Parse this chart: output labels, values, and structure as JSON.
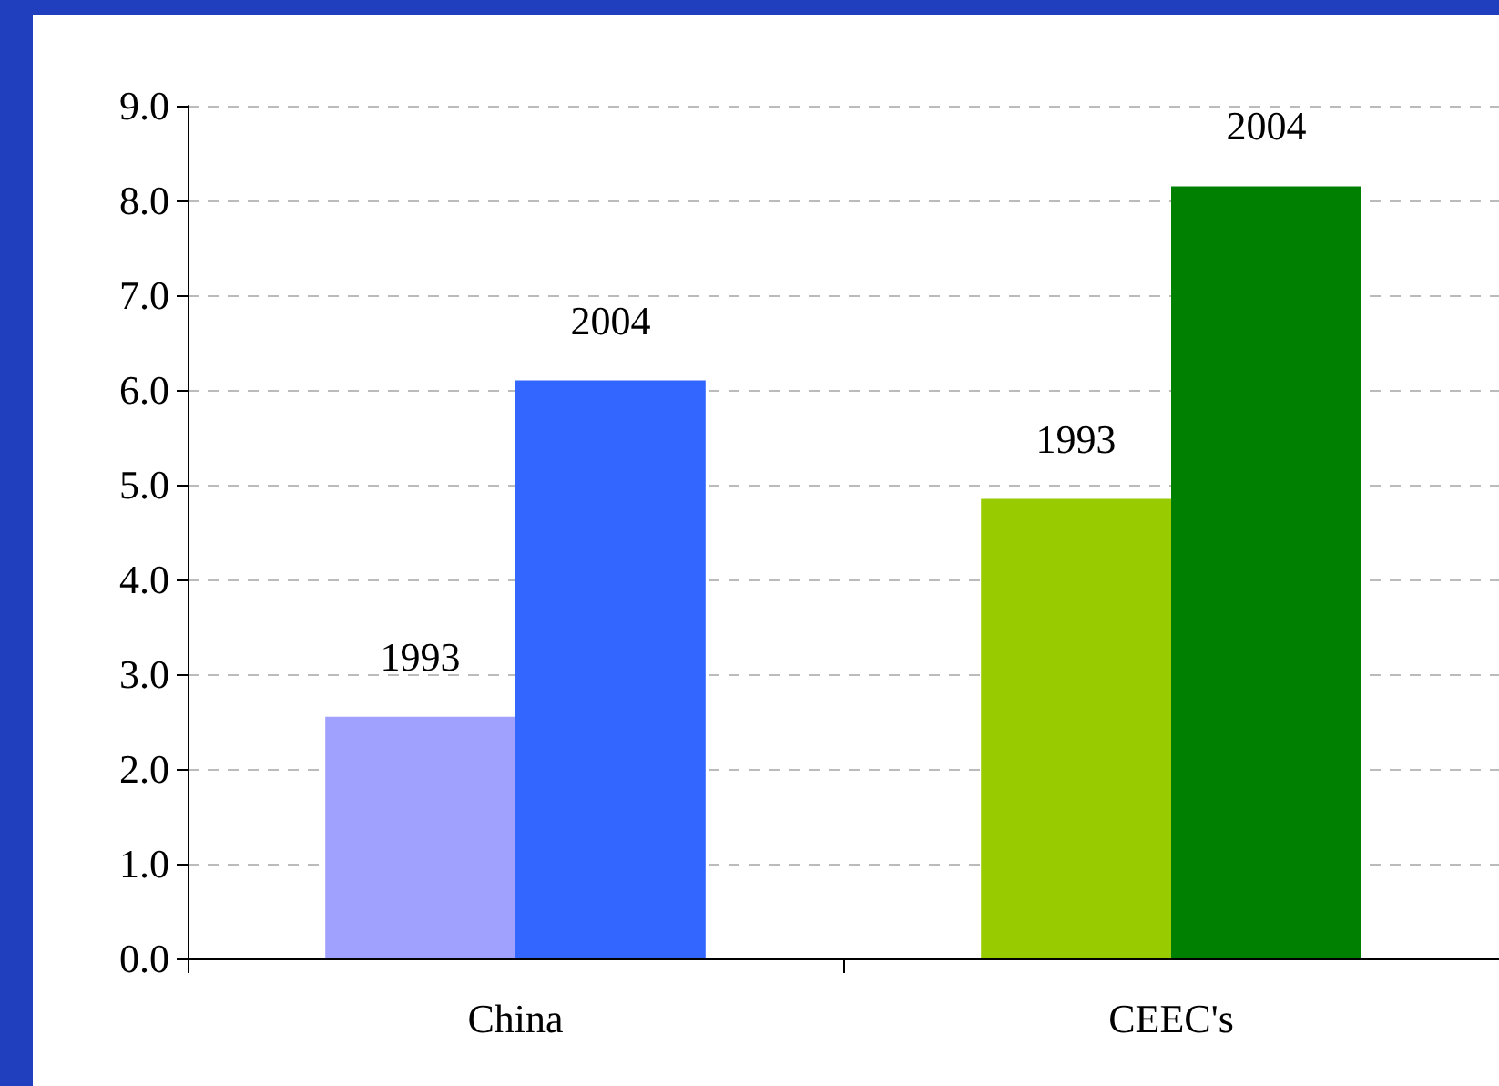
{
  "chart_data": {
    "type": "bar",
    "categories": [
      "China",
      "CEEC's"
    ],
    "series": [
      {
        "name": "1993",
        "colors": [
          "#a0a0ff",
          "#99cc00"
        ],
        "values": [
          2.55,
          4.85
        ]
      },
      {
        "name": "2004",
        "colors": [
          "#3366ff",
          "#008000"
        ],
        "values": [
          6.1,
          8.15
        ]
      }
    ],
    "ylim": [
      0,
      9
    ],
    "yticks": [
      {
        "value": 0,
        "label": "0.0"
      },
      {
        "value": 1,
        "label": "1.0"
      },
      {
        "value": 2,
        "label": "2.0"
      },
      {
        "value": 3,
        "label": "3.0"
      },
      {
        "value": 4,
        "label": "4.0"
      },
      {
        "value": 5,
        "label": "5.0"
      },
      {
        "value": 6,
        "label": "6.0"
      },
      {
        "value": 7,
        "label": "7.0"
      },
      {
        "value": 8,
        "label": "8.0"
      },
      {
        "value": 9,
        "label": "9.0"
      }
    ],
    "grid": "y",
    "legend": false
  }
}
